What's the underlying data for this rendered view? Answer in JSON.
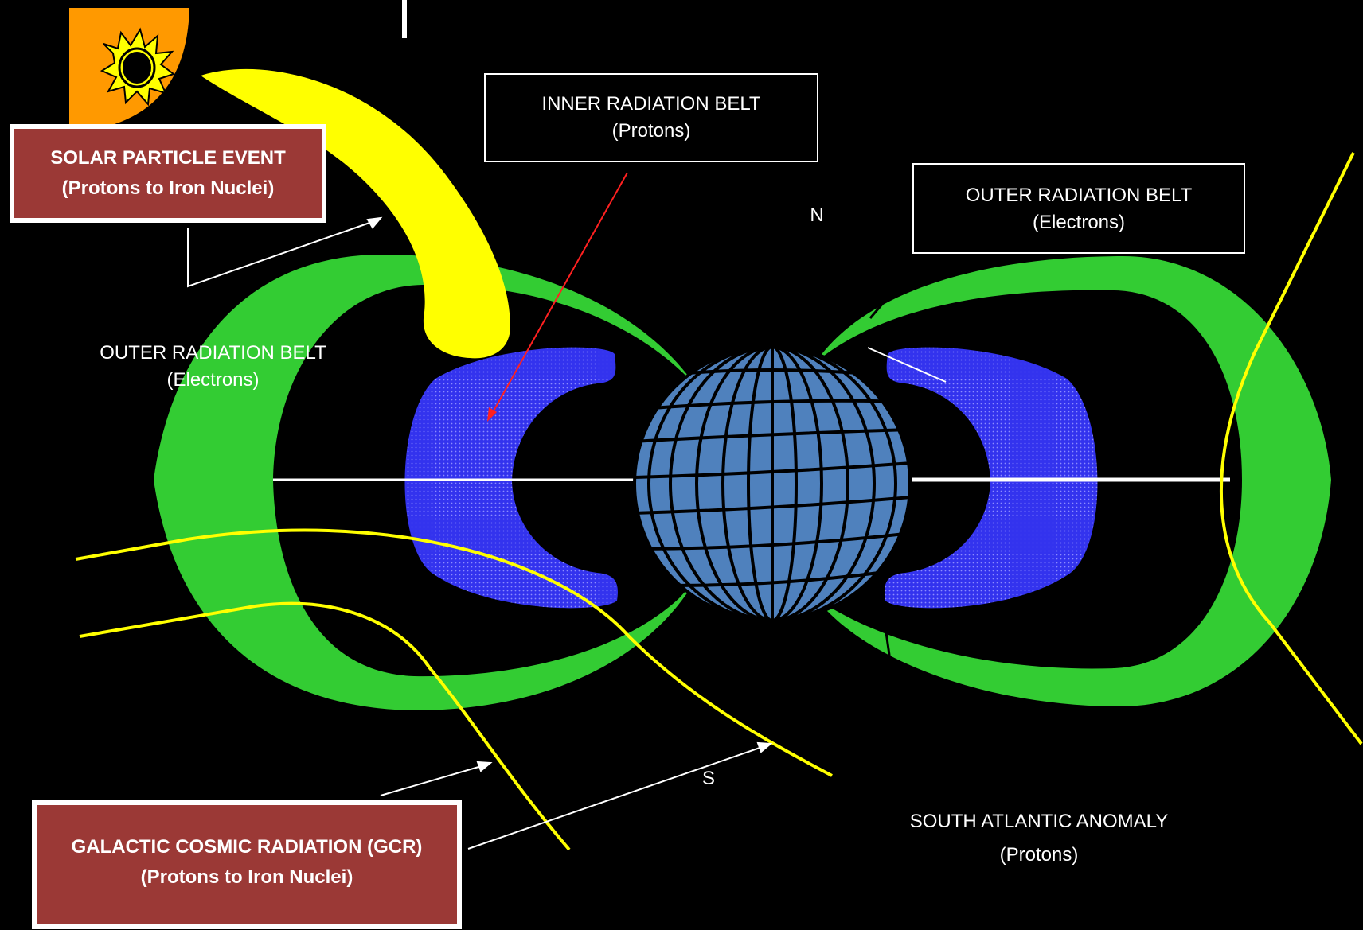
{
  "labels": {
    "inner_belt": {
      "title": "INNER RADIATION BELT",
      "sub": "(Protons)"
    },
    "outer_belt_right": {
      "title": "OUTER RADIATION BELT",
      "sub": "(Electrons)"
    },
    "outer_belt_left": {
      "title": "OUTER RADIATION BELT",
      "sub": "(Electrons)"
    },
    "solar_event": {
      "title": "SOLAR PARTICLE EVENT",
      "sub": "(Protons to Iron Nuclei)"
    },
    "gcr": {
      "title": "GALACTIC COSMIC RADIATION (GCR)",
      "sub": "(Protons to Iron Nuclei)"
    },
    "saa": {
      "title": "SOUTH ATLANTIC ANOMALY",
      "sub": "(Protons)"
    },
    "north": "N",
    "south": "S"
  },
  "colors": {
    "background": "#000000",
    "outer_belt": "#33cc33",
    "inner_belt": "#3333ee",
    "earth": "#4f81bd",
    "solar_stream": "#ffff00",
    "sun": "#ff9900",
    "label_box": "#9b3936",
    "trajectory": "#ffff00"
  },
  "icons": [
    "sun-icon",
    "earth-globe-icon"
  ]
}
